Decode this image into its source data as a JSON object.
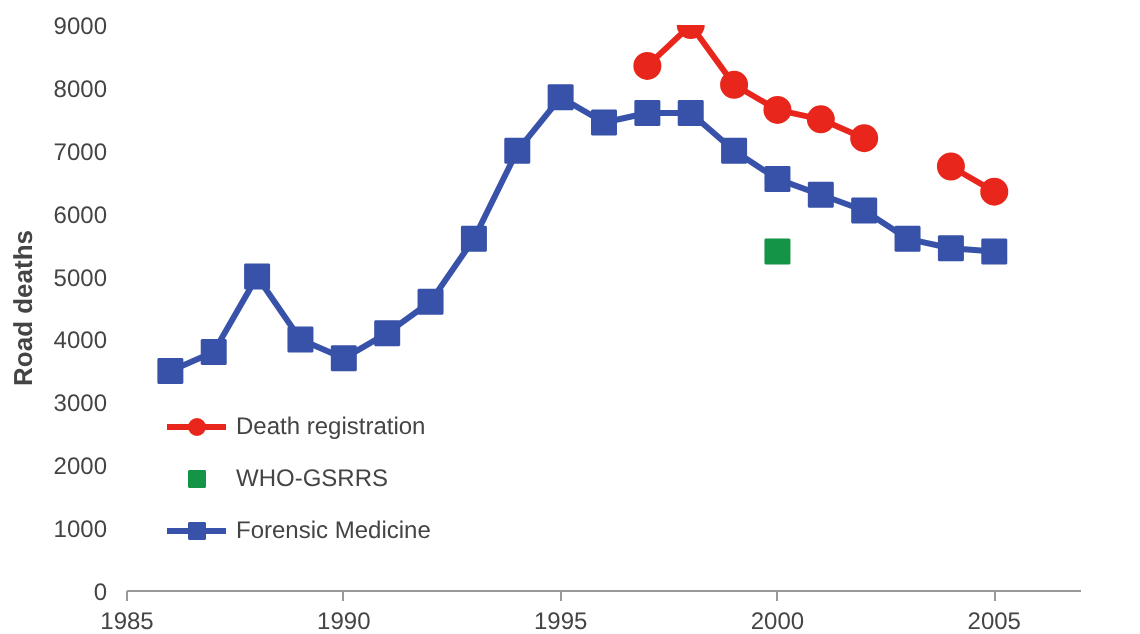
{
  "chart_data": {
    "type": "line",
    "ylabel": "Road deaths",
    "xlim": [
      1985,
      2007
    ],
    "xticks": [
      1985,
      1990,
      1995,
      2000,
      2005
    ],
    "ylim": [
      0,
      9000
    ],
    "yticks": [
      0,
      1000,
      2000,
      3000,
      4000,
      5000,
      6000,
      7000,
      8000,
      9000
    ],
    "grid": false,
    "legend": "bottom left",
    "series": [
      {
        "name": "Death registration",
        "color": "#e8261b",
        "marker": "circle",
        "x": [
          1997,
          1998,
          1999,
          2000,
          2001,
          2002,
          2003,
          2004,
          2005
        ],
        "values": [
          8350,
          9000,
          8050,
          7650,
          7500,
          7200,
          null,
          6750,
          6350
        ]
      },
      {
        "name": "WHO-GSRRS",
        "color": "#149446",
        "type": "scatter",
        "marker": "square",
        "x": [
          2000
        ],
        "values": [
          5400
        ]
      },
      {
        "name": "Forensic Medicine",
        "color": "#3752a8",
        "marker": "square",
        "x": [
          1986,
          1987,
          1988,
          1989,
          1990,
          1991,
          1992,
          1993,
          1994,
          1995,
          1996,
          1997,
          1998,
          1999,
          2000,
          2001,
          2002,
          2003,
          2004,
          2005
        ],
        "values": [
          3500,
          3800,
          5000,
          4000,
          3700,
          4100,
          4600,
          5600,
          7000,
          7850,
          7450,
          7600,
          7600,
          7000,
          6550,
          6300,
          6050,
          5600,
          5450,
          5400
        ]
      }
    ]
  }
}
